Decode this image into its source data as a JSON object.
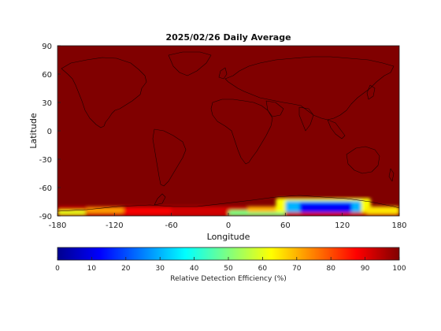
{
  "chart_data": {
    "type": "heatmap",
    "title": "2025/02/26 Daily Average",
    "xlabel": "Longitude",
    "ylabel": "Latitude",
    "xlim": [
      -180,
      180
    ],
    "ylim": [
      -90,
      90
    ],
    "xticks": [
      -180,
      -120,
      -60,
      0,
      60,
      120,
      180
    ],
    "yticks": [
      -90,
      -60,
      -30,
      0,
      30,
      60,
      90
    ],
    "colorbar": {
      "label": "Relative Detection Efficiency (%)",
      "range": [
        0,
        100
      ],
      "ticks": [
        0,
        10,
        20,
        30,
        40,
        50,
        60,
        70,
        80,
        90,
        100
      ],
      "colormap": "jet"
    },
    "background_value": 100,
    "regions": [
      {
        "lon": [
          -180,
          180
        ],
        "lat": [
          -90,
          -80
        ],
        "value": 92
      },
      {
        "lon": [
          -180,
          -150
        ],
        "lat": [
          -89,
          -84
        ],
        "value": 60
      },
      {
        "lon": [
          -150,
          -110
        ],
        "lat": [
          -87,
          -81
        ],
        "value": 72
      },
      {
        "lon": [
          -110,
          -60
        ],
        "lat": [
          -88,
          -82
        ],
        "value": 88
      },
      {
        "lon": [
          0,
          60
        ],
        "lat": [
          -90,
          -84
        ],
        "value": 50
      },
      {
        "lon": [
          20,
          60
        ],
        "lat": [
          -86,
          -80
        ],
        "value": 70
      },
      {
        "lon": [
          50,
          150
        ],
        "lat": [
          -86,
          -71
        ],
        "value": 62
      },
      {
        "lon": [
          60,
          140
        ],
        "lat": [
          -86,
          -74
        ],
        "value": 30
      },
      {
        "lon": [
          75,
          130
        ],
        "lat": [
          -86,
          -76
        ],
        "value": 12
      },
      {
        "lon": [
          145,
          180
        ],
        "lat": [
          -88,
          -80
        ],
        "value": 65
      }
    ],
    "coastlines": "world map outline overlay"
  }
}
